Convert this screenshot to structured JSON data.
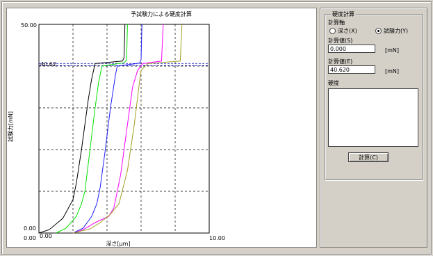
{
  "chart_data": {
    "type": "line",
    "title": "予試験力による硬度計算",
    "xlabel": "深さ[μm]",
    "ylabel": "試験力[mN]",
    "xlim": [
      0,
      10
    ],
    "ylim": [
      0,
      50
    ],
    "x_tick_labels": {
      "min": "0.00",
      "max": "10.00",
      "min_inner": "0.00"
    },
    "y_tick_labels": {
      "max": "50.00",
      "min": "0.00"
    },
    "threshold_label": "40.62",
    "threshold_value": 40.62,
    "grid": true,
    "series": [
      {
        "color": "#000000",
        "points": [
          [
            0,
            0
          ],
          [
            0.6,
            0.8
          ],
          [
            1.4,
            3.5
          ],
          [
            2.0,
            8
          ],
          [
            2.2,
            12
          ],
          [
            2.5,
            20
          ],
          [
            2.9,
            32
          ],
          [
            3.1,
            37
          ],
          [
            3.3,
            40.6
          ],
          [
            4.9,
            41.2
          ],
          [
            5.0,
            42
          ],
          [
            5.05,
            50
          ]
        ]
      },
      {
        "color": "#00e000",
        "points": [
          [
            1.0,
            0
          ],
          [
            1.6,
            1.2
          ],
          [
            2.2,
            4
          ],
          [
            2.5,
            7
          ],
          [
            2.7,
            10
          ],
          [
            3.0,
            20
          ],
          [
            3.3,
            30
          ],
          [
            3.5,
            36
          ],
          [
            3.7,
            40
          ],
          [
            5.0,
            40.8
          ],
          [
            5.15,
            41.5
          ],
          [
            5.2,
            50
          ]
        ]
      },
      {
        "color": "#2020ff",
        "points": [
          [
            2.0,
            0
          ],
          [
            2.6,
            1.2
          ],
          [
            3.1,
            4
          ],
          [
            3.4,
            7
          ],
          [
            3.6,
            11
          ],
          [
            3.9,
            20
          ],
          [
            4.2,
            30
          ],
          [
            4.5,
            38
          ],
          [
            4.6,
            40
          ],
          [
            5.9,
            40.7
          ],
          [
            6.0,
            41.5
          ],
          [
            6.05,
            50
          ]
        ]
      },
      {
        "color": "#ff00ff",
        "points": [
          [
            2.0,
            0
          ],
          [
            2.6,
            0.8
          ],
          [
            3.3,
            2.5
          ],
          [
            4.1,
            4
          ],
          [
            4.4,
            6
          ],
          [
            4.8,
            14
          ],
          [
            5.2,
            26
          ],
          [
            5.5,
            35
          ],
          [
            5.8,
            39
          ],
          [
            6.1,
            40.6
          ],
          [
            7.2,
            41.2
          ],
          [
            7.3,
            50
          ]
        ]
      },
      {
        "color": "#a0a020",
        "points": [
          [
            2.0,
            0
          ],
          [
            3.0,
            1
          ],
          [
            3.6,
            2.5
          ],
          [
            4.2,
            4.5
          ],
          [
            4.7,
            7
          ],
          [
            5.2,
            15
          ],
          [
            5.6,
            26
          ],
          [
            5.9,
            36
          ],
          [
            6.0,
            39
          ],
          [
            6.4,
            40.6
          ],
          [
            8.3,
            41.2
          ],
          [
            8.4,
            50
          ]
        ]
      }
    ]
  },
  "calc_panel": {
    "group_title": "硬度計算",
    "axis_label": "計算軸",
    "radio_depth": "深さ(X)",
    "radio_force": "試験力(Y)",
    "start_label": "計算値(S)",
    "start_value": "0.000",
    "start_unit": "[mN]",
    "end_label": "計算値(E)",
    "end_value": "40.620",
    "end_unit": "[mN]",
    "hardness_label": "硬度",
    "calc_button": "計算(C)",
    "selected_axis": "force"
  }
}
